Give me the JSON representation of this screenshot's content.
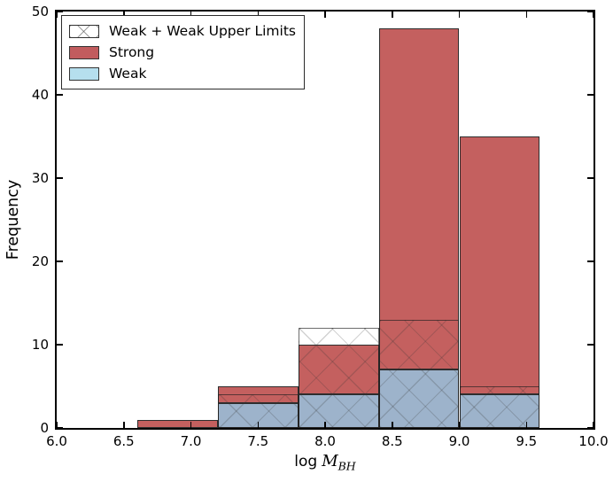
{
  "chart_data": {
    "type": "bar",
    "subtype": "stacked-histogram-with-hatched-overlay",
    "title": "",
    "xlabel": "log M_BH",
    "xlabel_parts": {
      "prefix": "log",
      "var": "M",
      "sub": "BH"
    },
    "ylabel": "Frequency",
    "xlim": [
      6.0,
      10.0
    ],
    "ylim": [
      0,
      50
    ],
    "x_tick_values": [
      6.0,
      6.5,
      7.0,
      7.5,
      8.0,
      8.5,
      9.0,
      9.5,
      10.0
    ],
    "x_tick_labels": [
      "6.0",
      "6.5",
      "7.0",
      "7.5",
      "8.0",
      "8.5",
      "9.0",
      "9.5",
      "10.0"
    ],
    "y_tick_values": [
      0,
      10,
      20,
      30,
      40,
      50
    ],
    "y_tick_labels": [
      "0",
      "10",
      "20",
      "30",
      "40",
      "50"
    ],
    "bin_edges": [
      6.6,
      7.2,
      7.8,
      8.4,
      9.0,
      9.6
    ],
    "series": [
      {
        "name": "Weak",
        "role": "stacked-base",
        "values": [
          0,
          3,
          4,
          7,
          4
        ]
      },
      {
        "name": "Strong",
        "role": "stacked-top",
        "values": [
          1,
          2,
          6,
          41,
          31
        ]
      },
      {
        "name": "Weak + Weak Upper Limits",
        "role": "hatched-overlay",
        "hatch": "x",
        "values": [
          0,
          4,
          12,
          13,
          5
        ]
      }
    ],
    "stacked_totals": [
      1,
      5,
      10,
      48,
      35
    ],
    "legend": {
      "position": "upper left",
      "entries": [
        "Weak + Weak Upper Limits",
        "Strong",
        "Weak"
      ]
    },
    "grid": false,
    "tick_direction": "in"
  },
  "colors": {
    "strong_fill": "#c4605f",
    "weak_fill": "#9db3cb",
    "legend_strong": "#c25c5e",
    "legend_weak": "#b6dfee",
    "bar_edge": "#2e2e2e",
    "overlay_edge": "rgba(30,30,30,0.65)",
    "hatch_line": "rgba(50,50,50,0.22)",
    "axis": "#000000"
  }
}
